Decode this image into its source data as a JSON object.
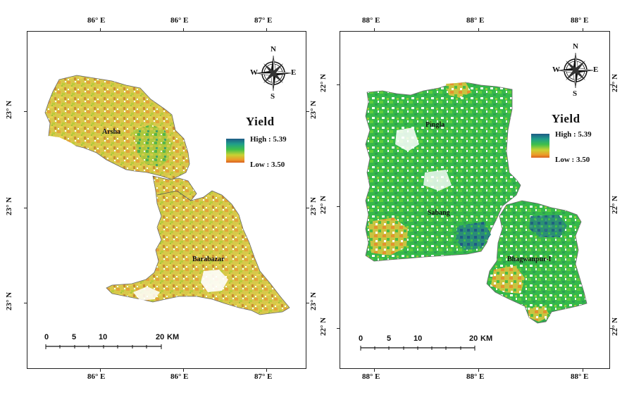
{
  "legend": {
    "title": "Yield",
    "high_label": "High : 5.39",
    "low_label": "Low : 3.50",
    "colors": [
      "#1e5a86",
      "#1f9e8a",
      "#3fc04a",
      "#c9d233",
      "#ec9a2a",
      "#d9601f"
    ]
  },
  "compass": {
    "n": "N",
    "s": "S",
    "e": "E",
    "w": "W"
  },
  "scale_bar": {
    "labels": [
      "0",
      "5",
      "10",
      "20"
    ],
    "unit": "KM"
  },
  "left_map": {
    "top_ticks": [
      "86° E",
      "86° E",
      "87° E"
    ],
    "bottom_ticks": [
      "86° E",
      "86° E",
      "87° E"
    ],
    "left_ticks": [
      "23° N",
      "23° N",
      "23° N"
    ],
    "right_ticks": [
      "23° N",
      "23° N",
      "23° N"
    ],
    "places": [
      "Arsha",
      "Barabazar"
    ]
  },
  "right_map": {
    "top_ticks": [
      "88° E",
      "88° E",
      "88° E"
    ],
    "bottom_ticks": [
      "88° E",
      "88° E",
      "88° E"
    ],
    "left_ticks": [
      "22° N",
      "22° N",
      "22° N"
    ],
    "right_ticks": [
      "22° N",
      "22° N",
      "22° N"
    ],
    "places": [
      "Pingla",
      "Sabang",
      "Bhagwanpur-I"
    ]
  }
}
